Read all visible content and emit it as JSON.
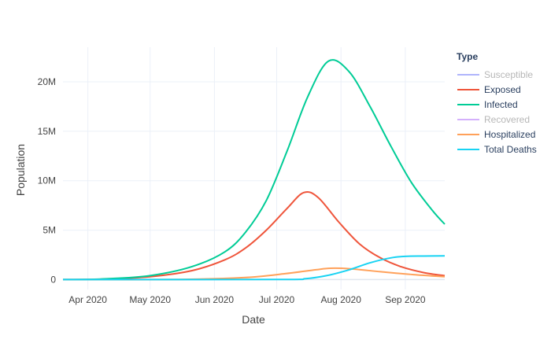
{
  "chart_data": {
    "type": "line",
    "xlabel": "Date",
    "ylabel": "Population",
    "legend_title": "Type",
    "legend_position": "top-right",
    "grid": true,
    "xlim": [
      "2020-03-20",
      "2020-09-20"
    ],
    "ylim": [
      -1000000,
      23500000
    ],
    "x_ticks": [
      {
        "date": "2020-04-01",
        "label": "Apr 2020"
      },
      {
        "date": "2020-05-01",
        "label": "May 2020"
      },
      {
        "date": "2020-06-01",
        "label": "Jun 2020"
      },
      {
        "date": "2020-07-01",
        "label": "Jul 2020"
      },
      {
        "date": "2020-08-01",
        "label": "Aug 2020"
      },
      {
        "date": "2020-09-01",
        "label": "Sep 2020"
      }
    ],
    "y_ticks": [
      {
        "value": 0,
        "label": "0"
      },
      {
        "value": 5000000,
        "label": "5M"
      },
      {
        "value": 10000000,
        "label": "10M"
      },
      {
        "value": 15000000,
        "label": "15M"
      },
      {
        "value": 20000000,
        "label": "20M"
      }
    ],
    "series": [
      {
        "name": "Susceptible",
        "color": "#636efa",
        "hidden": true,
        "x": [],
        "y": []
      },
      {
        "name": "Exposed",
        "color": "#ef553b",
        "hidden": false,
        "x": [
          "2020-03-20",
          "2020-04-10",
          "2020-05-01",
          "2020-05-21",
          "2020-06-06",
          "2020-06-16",
          "2020-06-26",
          "2020-07-06",
          "2020-07-14",
          "2020-07-21",
          "2020-07-31",
          "2020-08-10",
          "2020-08-20",
          "2020-08-30",
          "2020-09-10",
          "2020-09-20"
        ],
        "y": [
          0,
          50000,
          300000,
          900000,
          2000000,
          3200000,
          5000000,
          7200000,
          8800000,
          8300000,
          5800000,
          3600000,
          2200000,
          1300000,
          700000,
          400000
        ]
      },
      {
        "name": "Infected",
        "color": "#00cc96",
        "hidden": false,
        "x": [
          "2020-03-20",
          "2020-04-10",
          "2020-05-01",
          "2020-05-21",
          "2020-06-06",
          "2020-06-16",
          "2020-06-26",
          "2020-07-06",
          "2020-07-16",
          "2020-07-26",
          "2020-08-05",
          "2020-08-15",
          "2020-08-25",
          "2020-09-04",
          "2020-09-14",
          "2020-09-20"
        ],
        "y": [
          0,
          80000,
          400000,
          1300000,
          2800000,
          4800000,
          8000000,
          13000000,
          18500000,
          22100000,
          21000000,
          17500000,
          13500000,
          9800000,
          7000000,
          5600000
        ]
      },
      {
        "name": "Recovered",
        "color": "#ab63fa",
        "hidden": true,
        "x": [],
        "y": []
      },
      {
        "name": "Hospitalized",
        "color": "#ffa15a",
        "hidden": false,
        "x": [
          "2020-03-20",
          "2020-05-15",
          "2020-06-15",
          "2020-07-05",
          "2020-07-20",
          "2020-07-27",
          "2020-08-05",
          "2020-08-20",
          "2020-09-05",
          "2020-09-20"
        ],
        "y": [
          0,
          20000,
          200000,
          600000,
          1000000,
          1150000,
          1100000,
          800000,
          500000,
          300000
        ]
      },
      {
        "name": "Total Deaths",
        "color": "#19d3f3",
        "hidden": false,
        "x": [
          "2020-03-20",
          "2020-07-01",
          "2020-07-15",
          "2020-07-25",
          "2020-08-05",
          "2020-08-15",
          "2020-08-25",
          "2020-09-01",
          "2020-09-10",
          "2020-09-20"
        ],
        "y": [
          0,
          10000,
          100000,
          400000,
          1000000,
          1700000,
          2200000,
          2350000,
          2380000,
          2400000
        ]
      }
    ]
  }
}
